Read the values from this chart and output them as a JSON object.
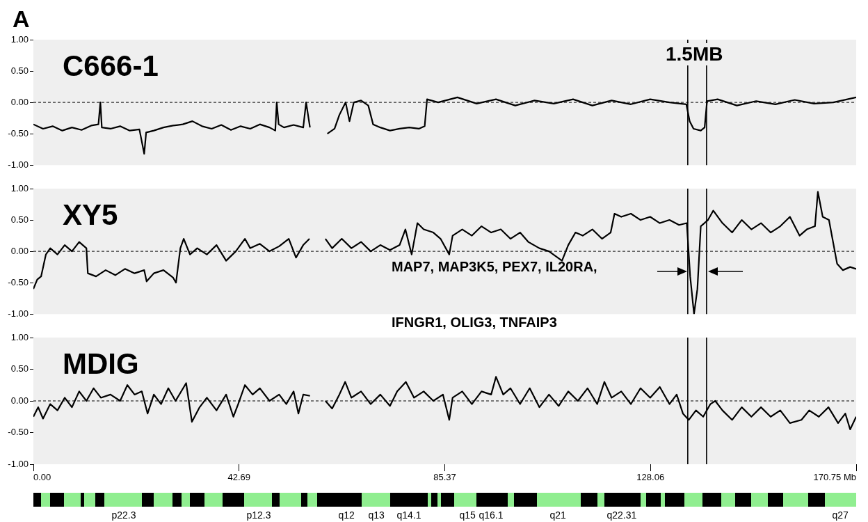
{
  "chart_data": [
    {
      "type": "line",
      "title": "C666-1",
      "annotations": [
        "A",
        "1.5MB"
      ],
      "tick_labels": "y",
      "xlim": [
        0,
        170.75
      ],
      "ylim": [
        -1,
        1
      ],
      "yticks": [
        {
          "value": -1,
          "label": "-1.00"
        },
        {
          "value": -0.5,
          "label": "-0.50"
        },
        {
          "value": 0,
          "label": "0.00"
        },
        {
          "value": 0.5,
          "label": "0.50"
        },
        {
          "value": 1,
          "label": "1.00"
        }
      ],
      "ref_lines": [
        {
          "axis": "y",
          "value": 0,
          "line_style": "dashed",
          "color": "#000000"
        },
        {
          "axis": "x",
          "value": 135.8,
          "color": "#000000"
        },
        {
          "axis": "x",
          "value": 139.7,
          "color": "#000000"
        }
      ],
      "x": [
        0,
        2,
        4,
        6,
        8,
        10,
        12,
        13.5,
        13.9,
        14.2,
        16,
        18,
        20,
        22,
        23,
        23.4,
        25,
        27,
        29,
        31,
        33,
        35,
        37,
        39,
        41,
        43,
        45,
        47,
        49,
        50.2,
        50.5,
        50.9,
        52,
        54,
        56,
        56.6,
        57.4,
        59,
        61,
        62.5,
        63.5,
        64.8,
        65.6,
        66.5,
        68,
        69.5,
        70.5,
        72,
        74,
        76,
        78,
        80,
        81.2,
        81.7,
        84,
        88,
        92,
        96,
        100,
        104,
        108,
        112,
        116,
        120,
        124,
        128,
        132,
        135.5,
        136.2,
        137,
        138.5,
        139.3,
        139.8,
        142,
        146,
        150,
        154,
        158,
        162,
        166,
        170.75
      ],
      "series": [
        {
          "color": "#000000",
          "values": [
            -0.35,
            -0.42,
            -0.38,
            -0.45,
            -0.4,
            -0.44,
            -0.37,
            -0.35,
            0.0,
            -0.4,
            -0.42,
            -0.38,
            -0.45,
            -0.43,
            -0.82,
            -0.48,
            -0.45,
            -0.4,
            -0.37,
            -0.35,
            -0.3,
            -0.38,
            -0.42,
            -0.36,
            -0.44,
            -0.38,
            -0.42,
            -0.35,
            -0.4,
            -0.45,
            0.0,
            -0.35,
            -0.4,
            -0.36,
            -0.4,
            0.0,
            -0.4,
            null,
            -0.5,
            -0.42,
            -0.2,
            0.0,
            -0.3,
            0.0,
            0.03,
            -0.05,
            -0.35,
            -0.4,
            -0.45,
            -0.42,
            -0.4,
            -0.42,
            -0.38,
            0.05,
            0.0,
            0.08,
            -0.02,
            0.05,
            -0.05,
            0.03,
            -0.02,
            0.05,
            -0.05,
            0.03,
            -0.03,
            0.05,
            0.0,
            -0.03,
            -0.3,
            -0.42,
            -0.45,
            -0.4,
            0.02,
            0.05,
            -0.05,
            0.02,
            -0.03,
            0.04,
            -0.02,
            0.0,
            0.08
          ]
        }
      ]
    },
    {
      "type": "line",
      "title": "XY5",
      "annotations": [
        "MAP7, MAP3K5, PEX7, IL20RA,",
        "IFNGR1, OLIG3, TNFAIP3"
      ],
      "tick_labels": "y",
      "xlim": [
        0,
        170.75
      ],
      "ylim": [
        -1,
        1
      ],
      "yticks": [
        {
          "value": -1,
          "label": "-1.00"
        },
        {
          "value": -0.5,
          "label": "-0.50"
        },
        {
          "value": 0,
          "label": "0.00"
        },
        {
          "value": 0.5,
          "label": "0.50"
        },
        {
          "value": 1,
          "label": "1.00"
        }
      ],
      "ref_lines": [
        {
          "axis": "y",
          "value": 0,
          "line_style": "dashed",
          "color": "#000000"
        },
        {
          "axis": "x",
          "value": 135.8,
          "color": "#000000"
        },
        {
          "axis": "x",
          "value": 139.7,
          "color": "#000000"
        }
      ],
      "x": [
        0,
        0.8,
        1.6,
        2.6,
        3.5,
        5,
        6.5,
        8,
        9.5,
        11,
        11.3,
        13,
        15,
        17,
        19,
        21,
        23,
        23.5,
        25,
        27,
        29,
        29.6,
        30.5,
        31.2,
        32.5,
        34,
        36,
        38,
        40,
        42,
        43.9,
        45,
        47,
        49,
        51,
        53,
        54.5,
        56,
        57.3,
        59,
        60.6,
        62,
        64,
        66,
        68,
        70,
        72,
        74,
        76,
        77.2,
        78.5,
        79.7,
        81,
        83,
        84.5,
        86.3,
        87,
        89,
        91,
        93,
        95,
        97,
        99,
        101,
        102.7,
        105,
        107,
        109.7,
        111,
        112.5,
        114,
        116,
        118,
        119.8,
        120.6,
        122,
        124,
        126,
        128,
        130,
        132,
        134,
        135.6,
        136.3,
        137.1,
        137.8,
        138.5,
        140,
        141.1,
        143,
        145,
        147,
        149,
        151,
        153,
        155,
        157,
        159,
        160.5,
        162.2,
        162.8,
        163.8,
        165.1,
        166.8,
        168,
        169.5,
        170.75
      ],
      "series": [
        {
          "color": "#000000",
          "values": [
            -0.6,
            -0.45,
            -0.4,
            -0.05,
            0.05,
            -0.05,
            0.1,
            0.0,
            0.15,
            0.05,
            -0.35,
            -0.4,
            -0.3,
            -0.38,
            -0.28,
            -0.35,
            -0.3,
            -0.48,
            -0.35,
            -0.3,
            -0.42,
            -0.5,
            0.05,
            0.2,
            -0.05,
            0.05,
            -0.05,
            0.1,
            -0.15,
            0.0,
            0.2,
            0.05,
            0.12,
            0.0,
            0.08,
            0.2,
            -0.1,
            0.1,
            0.2,
            null,
            0.2,
            0.05,
            0.2,
            0.05,
            0.15,
            0.0,
            0.1,
            0.02,
            0.1,
            0.35,
            -0.05,
            0.45,
            0.35,
            0.3,
            0.2,
            -0.05,
            0.25,
            0.35,
            0.25,
            0.4,
            0.3,
            0.35,
            0.2,
            0.3,
            0.15,
            0.05,
            0.0,
            -0.15,
            0.1,
            0.3,
            0.25,
            0.35,
            0.2,
            0.3,
            0.6,
            0.55,
            0.6,
            0.5,
            0.55,
            0.45,
            0.5,
            0.42,
            0.45,
            -0.4,
            -1.0,
            -0.6,
            0.4,
            0.5,
            0.65,
            0.45,
            0.3,
            0.5,
            0.35,
            0.45,
            0.3,
            0.4,
            0.55,
            0.25,
            0.35,
            0.4,
            0.95,
            0.55,
            0.5,
            -0.2,
            -0.3,
            -0.25,
            -0.28
          ]
        }
      ]
    },
    {
      "type": "line",
      "title": "MDIG",
      "annotations": [
        "p22.3",
        "p12.3",
        "q12",
        "q13",
        "q14.1",
        "q15",
        "q16.1",
        "q21",
        "q22.31",
        "q27"
      ],
      "xlim": [
        0,
        170.75
      ],
      "xticks": [
        {
          "value": 0,
          "label": "0.00"
        },
        42.69,
        85.37,
        128.06,
        {
          "value": 170.75,
          "label": "170.75 Mb"
        }
      ],
      "ylim": [
        -1,
        1
      ],
      "yticks": [
        {
          "value": -1,
          "label": "-1.00"
        },
        {
          "value": -0.5,
          "label": "-0.50"
        },
        {
          "value": 0,
          "label": "0.00"
        },
        {
          "value": 0.5,
          "label": "0.50"
        },
        {
          "value": 1,
          "label": "1.00"
        }
      ],
      "ref_lines": [
        {
          "axis": "y",
          "value": 0,
          "line_style": "dashed",
          "color": "#000000"
        },
        {
          "axis": "x",
          "value": 135.8,
          "color": "#000000"
        },
        {
          "axis": "x",
          "value": 139.7,
          "color": "#000000"
        }
      ],
      "x": [
        0,
        1,
        2,
        3.5,
        5,
        6.5,
        8,
        9.5,
        11,
        12.5,
        14,
        16,
        18,
        19.5,
        21,
        22.5,
        23.7,
        25,
        26.5,
        28,
        29.5,
        31.7,
        32.9,
        34.5,
        36,
        38,
        40,
        41.5,
        42.5,
        43.9,
        45.5,
        47,
        49,
        51,
        52.5,
        54,
        55,
        56,
        57.4,
        59,
        60.6,
        62,
        63.5,
        64.7,
        66,
        68,
        70,
        72,
        74,
        75.5,
        77.3,
        79,
        81,
        83,
        85,
        86.3,
        87,
        89,
        91,
        93,
        95,
        96,
        97.5,
        99,
        101,
        103,
        105,
        107,
        109,
        111,
        113,
        115,
        117,
        118.5,
        120,
        122,
        124,
        126,
        128,
        130,
        132,
        133.5,
        134.8,
        136,
        137.5,
        139,
        140.5,
        141.5,
        143,
        145,
        147,
        149,
        151,
        153,
        155,
        157,
        159.4,
        161,
        163,
        165,
        167,
        168.5,
        169.5,
        170.75
      ],
      "series": [
        {
          "color": "#000000",
          "values": [
            -0.25,
            -0.1,
            -0.28,
            -0.05,
            -0.15,
            0.05,
            -0.1,
            0.15,
            0.0,
            0.2,
            0.05,
            0.1,
            0.0,
            0.25,
            0.1,
            0.15,
            -0.2,
            0.1,
            -0.05,
            0.2,
            0.0,
            0.28,
            -0.33,
            -0.1,
            0.05,
            -0.15,
            0.1,
            -0.25,
            -0.05,
            0.25,
            0.1,
            0.2,
            0.0,
            0.1,
            -0.05,
            0.15,
            -0.2,
            0.1,
            0.08,
            null,
            0.0,
            -0.12,
            0.1,
            0.3,
            0.05,
            0.15,
            -0.05,
            0.1,
            -0.08,
            0.15,
            0.3,
            0.05,
            0.15,
            0.0,
            0.1,
            -0.3,
            0.05,
            0.15,
            -0.05,
            0.15,
            0.1,
            0.38,
            0.1,
            0.2,
            -0.05,
            0.2,
            -0.1,
            0.1,
            -0.08,
            0.15,
            0.0,
            0.2,
            -0.05,
            0.3,
            0.05,
            0.15,
            -0.05,
            0.2,
            0.05,
            0.22,
            -0.05,
            0.1,
            -0.2,
            -0.3,
            -0.15,
            -0.25,
            -0.05,
            0.0,
            -0.15,
            -0.3,
            -0.1,
            -0.25,
            -0.1,
            -0.25,
            -0.15,
            -0.35,
            -0.3,
            -0.15,
            -0.25,
            -0.1,
            -0.35,
            -0.2,
            -0.45,
            -0.25
          ]
        }
      ]
    }
  ]
}
